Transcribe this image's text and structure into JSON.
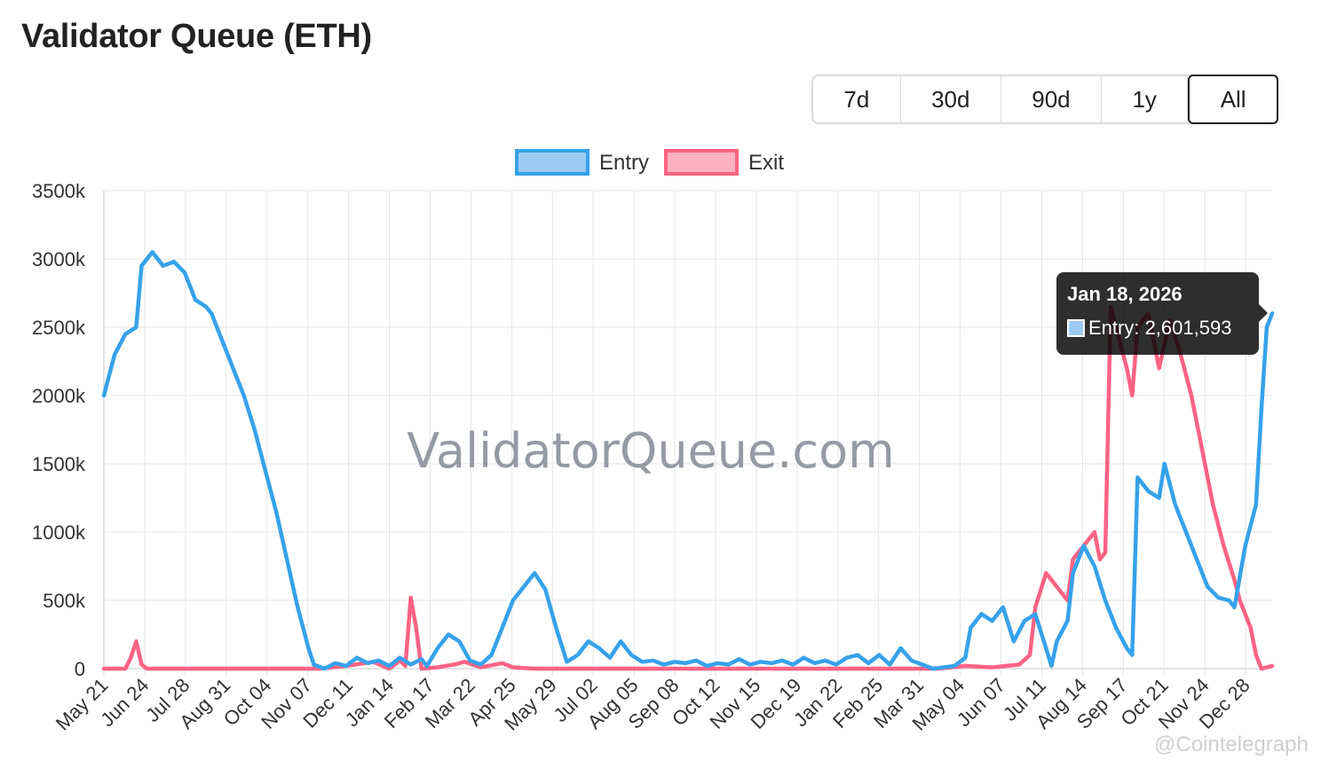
{
  "title": "Validator Queue (ETH)",
  "range_buttons": [
    "7d",
    "30d",
    "90d",
    "1y",
    "All"
  ],
  "active_range": "All",
  "tooltip": {
    "title": "Jan 18, 2026",
    "label": "Entry: 2,601,593"
  },
  "watermark": "ValidatorQueue.com",
  "credit": "@Cointelegraph",
  "colors": {
    "entry": "#36a2eb",
    "exit": "#ff6384",
    "entry_fill": "#9ccaf0",
    "exit_fill": "#ffb1c1"
  },
  "chart_data": {
    "type": "line",
    "ylim": [
      0,
      3500000
    ],
    "y_ticks": [
      "3500k",
      "3000k",
      "2500k",
      "2000k",
      "1500k",
      "1000k",
      "500k",
      "0"
    ],
    "x_tick_labels": [
      "May 21",
      "Jun 24",
      "Jul 28",
      "Aug 31",
      "Oct 04",
      "Nov 07",
      "Dec 11",
      "Jan 14",
      "Feb 17",
      "Mar 22",
      "Apr 25",
      "May 29",
      "Jul 02",
      "Aug 05",
      "Sep 08",
      "Oct 12",
      "Nov 15",
      "Dec 19",
      "Jan 22",
      "Feb 25",
      "Mar 31",
      "May 04",
      "Jun 07",
      "Jul 11",
      "Aug 14",
      "Sep 17",
      "Oct 21",
      "Nov 24",
      "Dec 28"
    ],
    "legend_position": "top",
    "grid": true,
    "series": [
      {
        "name": "Entry",
        "points": [
          [
            0,
            2000000
          ],
          [
            2,
            2300000
          ],
          [
            4,
            2450000
          ],
          [
            6,
            2500000
          ],
          [
            7,
            2950000
          ],
          [
            9,
            3050000
          ],
          [
            11,
            2950000
          ],
          [
            13,
            2980000
          ],
          [
            15,
            2900000
          ],
          [
            17,
            2700000
          ],
          [
            19,
            2650000
          ],
          [
            20,
            2600000
          ],
          [
            22,
            2400000
          ],
          [
            24,
            2200000
          ],
          [
            26,
            2000000
          ],
          [
            28,
            1750000
          ],
          [
            30,
            1450000
          ],
          [
            32,
            1150000
          ],
          [
            34,
            800000
          ],
          [
            36,
            450000
          ],
          [
            38,
            150000
          ],
          [
            39,
            30000
          ],
          [
            41,
            0
          ],
          [
            43,
            40000
          ],
          [
            45,
            20000
          ],
          [
            47,
            80000
          ],
          [
            49,
            40000
          ],
          [
            51,
            60000
          ],
          [
            53,
            20000
          ],
          [
            55,
            80000
          ],
          [
            57,
            30000
          ],
          [
            59,
            70000
          ],
          [
            60,
            20000
          ],
          [
            62,
            150000
          ],
          [
            64,
            250000
          ],
          [
            66,
            200000
          ],
          [
            68,
            60000
          ],
          [
            70,
            30000
          ],
          [
            72,
            100000
          ],
          [
            74,
            300000
          ],
          [
            76,
            500000
          ],
          [
            78,
            600000
          ],
          [
            80,
            700000
          ],
          [
            82,
            580000
          ],
          [
            84,
            300000
          ],
          [
            86,
            50000
          ],
          [
            88,
            100000
          ],
          [
            90,
            200000
          ],
          [
            92,
            150000
          ],
          [
            94,
            80000
          ],
          [
            96,
            200000
          ],
          [
            98,
            100000
          ],
          [
            100,
            50000
          ],
          [
            102,
            60000
          ],
          [
            104,
            30000
          ],
          [
            106,
            50000
          ],
          [
            108,
            40000
          ],
          [
            110,
            60000
          ],
          [
            112,
            20000
          ],
          [
            114,
            40000
          ],
          [
            116,
            30000
          ],
          [
            118,
            70000
          ],
          [
            120,
            30000
          ],
          [
            122,
            50000
          ],
          [
            124,
            40000
          ],
          [
            126,
            60000
          ],
          [
            128,
            30000
          ],
          [
            130,
            80000
          ],
          [
            132,
            40000
          ],
          [
            134,
            60000
          ],
          [
            136,
            30000
          ],
          [
            138,
            80000
          ],
          [
            140,
            100000
          ],
          [
            142,
            40000
          ],
          [
            144,
            100000
          ],
          [
            146,
            30000
          ],
          [
            148,
            150000
          ],
          [
            150,
            60000
          ],
          [
            152,
            30000
          ],
          [
            154,
            0
          ],
          [
            156,
            10000
          ],
          [
            158,
            20000
          ],
          [
            160,
            80000
          ],
          [
            161,
            300000
          ],
          [
            163,
            400000
          ],
          [
            165,
            350000
          ],
          [
            167,
            450000
          ],
          [
            169,
            200000
          ],
          [
            171,
            350000
          ],
          [
            173,
            400000
          ],
          [
            175,
            150000
          ],
          [
            176,
            20000
          ],
          [
            177,
            200000
          ],
          [
            179,
            350000
          ],
          [
            180,
            700000
          ],
          [
            182,
            900000
          ],
          [
            184,
            750000
          ],
          [
            186,
            500000
          ],
          [
            188,
            300000
          ],
          [
            190,
            150000
          ],
          [
            191,
            100000
          ],
          [
            192,
            1400000
          ],
          [
            194,
            1300000
          ],
          [
            196,
            1250000
          ],
          [
            197,
            1500000
          ],
          [
            199,
            1200000
          ],
          [
            201,
            1000000
          ],
          [
            203,
            800000
          ],
          [
            205,
            600000
          ],
          [
            207,
            520000
          ],
          [
            209,
            500000
          ],
          [
            210,
            450000
          ],
          [
            212,
            900000
          ],
          [
            214,
            1200000
          ],
          [
            215,
            1900000
          ],
          [
            216,
            2500000
          ],
          [
            217,
            2601593
          ]
        ]
      },
      {
        "name": "Exit",
        "points": [
          [
            0,
            0
          ],
          [
            4,
            0
          ],
          [
            5,
            80000
          ],
          [
            6,
            200000
          ],
          [
            7,
            30000
          ],
          [
            8,
            0
          ],
          [
            30,
            0
          ],
          [
            40,
            0
          ],
          [
            45,
            20000
          ],
          [
            50,
            50000
          ],
          [
            53,
            0
          ],
          [
            55,
            60000
          ],
          [
            56,
            20000
          ],
          [
            57,
            520000
          ],
          [
            58,
            300000
          ],
          [
            59,
            0
          ],
          [
            62,
            10000
          ],
          [
            65,
            30000
          ],
          [
            67,
            50000
          ],
          [
            70,
            10000
          ],
          [
            74,
            40000
          ],
          [
            76,
            10000
          ],
          [
            80,
            0
          ],
          [
            100,
            0
          ],
          [
            120,
            0
          ],
          [
            140,
            0
          ],
          [
            155,
            0
          ],
          [
            160,
            20000
          ],
          [
            165,
            10000
          ],
          [
            170,
            30000
          ],
          [
            172,
            100000
          ],
          [
            173,
            450000
          ],
          [
            175,
            700000
          ],
          [
            177,
            600000
          ],
          [
            179,
            500000
          ],
          [
            180,
            800000
          ],
          [
            182,
            900000
          ],
          [
            184,
            1000000
          ],
          [
            185,
            800000
          ],
          [
            186,
            850000
          ],
          [
            187,
            2650000
          ],
          [
            188,
            2500000
          ],
          [
            190,
            2200000
          ],
          [
            191,
            2000000
          ],
          [
            192,
            2500000
          ],
          [
            194,
            2600000
          ],
          [
            195,
            2400000
          ],
          [
            196,
            2200000
          ],
          [
            198,
            2550000
          ],
          [
            200,
            2300000
          ],
          [
            202,
            2000000
          ],
          [
            204,
            1600000
          ],
          [
            206,
            1200000
          ],
          [
            208,
            900000
          ],
          [
            210,
            650000
          ],
          [
            211,
            500000
          ],
          [
            213,
            300000
          ],
          [
            214,
            100000
          ],
          [
            215,
            0
          ],
          [
            217,
            20000
          ]
        ]
      }
    ]
  }
}
